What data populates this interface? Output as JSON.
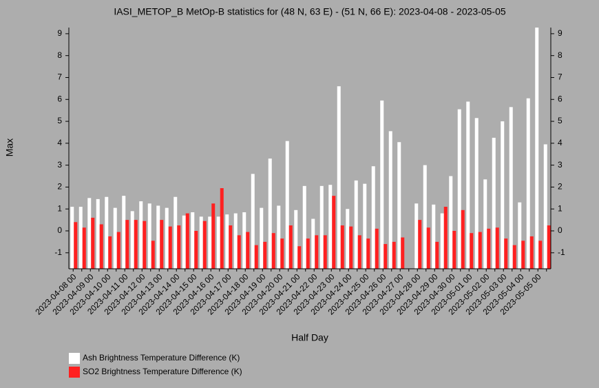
{
  "chart_data": {
    "type": "bar",
    "title": "IASI_METOP_B MetOp-B statistics for (48 N, 63 E) - (51 N, 66 E): 2023-04-08 - 2023-05-05",
    "xlabel": "Half Day",
    "ylabel": "Max",
    "categories": [
      "2023-04-08 00",
      null,
      "2023-04-09 00",
      null,
      "2023-04-10 00",
      null,
      "2023-04-11 00",
      null,
      "2023-04-12 00",
      null,
      "2023-04-13 00",
      null,
      "2023-04-14 00",
      null,
      "2023-04-15 00",
      null,
      "2023-04-16 00",
      null,
      "2023-04-17 00",
      null,
      "2023-04-18 00",
      null,
      "2023-04-19 00",
      null,
      "2023-04-20 00",
      null,
      "2023-04-21 00",
      null,
      "2023-04-22 00",
      null,
      "2023-04-23 00",
      null,
      "2023-04-24 00",
      null,
      "2023-04-25 00",
      null,
      "2023-04-26 00",
      null,
      "2023-04-27 00",
      null,
      "2023-04-28 00",
      null,
      "2023-04-29 00",
      null,
      "2023-04-30 00",
      null,
      "2023-05-01 00",
      null,
      "2023-05-02 00",
      null,
      "2023-05-03 00",
      null,
      "2023-05-04 00",
      null,
      "2023-05-05 00",
      null
    ],
    "series": [
      {
        "name": "Ash Brightness Temperature Difference (K)",
        "color": "#ffffff",
        "values": [
          1.1,
          1.1,
          1.5,
          1.45,
          1.55,
          1.05,
          1.6,
          0.9,
          1.35,
          1.25,
          1.15,
          1.05,
          1.55,
          0.7,
          0.85,
          0.65,
          0.65,
          0.65,
          0.75,
          0.8,
          0.85,
          2.6,
          1.05,
          3.3,
          1.15,
          4.1,
          0.95,
          2.05,
          0.55,
          2.05,
          2.1,
          6.6,
          1.0,
          2.3,
          2.15,
          2.95,
          5.95,
          4.55,
          4.05,
          null,
          1.25,
          3.0,
          1.2,
          0.8,
          2.5,
          5.55,
          5.9,
          5.15,
          2.35,
          4.25,
          5.0,
          5.65,
          1.3,
          6.05,
          9.5,
          3.95
        ]
      },
      {
        "name": "SO2 Brightness Temperature Difference (K)",
        "color": "#ff2020",
        "values": [
          0.4,
          0.15,
          0.6,
          0.3,
          -0.25,
          -0.05,
          0.5,
          0.5,
          0.45,
          -0.45,
          0.5,
          0.2,
          0.25,
          0.8,
          0.0,
          0.45,
          1.25,
          1.95,
          0.25,
          -0.2,
          -0.05,
          -0.65,
          -0.5,
          -0.1,
          -0.35,
          0.25,
          -0.7,
          -0.35,
          -0.2,
          -0.2,
          1.6,
          0.25,
          0.2,
          -0.2,
          -0.35,
          0.1,
          -0.6,
          -0.5,
          -0.3,
          null,
          0.5,
          0.15,
          -0.5,
          1.1,
          0.0,
          0.95,
          -0.1,
          -0.05,
          0.1,
          0.15,
          -0.35,
          -0.65,
          -0.45,
          -0.25,
          -0.45,
          0.25
        ]
      }
    ],
    "ylim": [
      -1.73,
      9.28
    ],
    "yticks": [
      -1,
      0,
      1,
      2,
      3,
      4,
      5,
      6,
      7,
      8,
      9
    ]
  }
}
